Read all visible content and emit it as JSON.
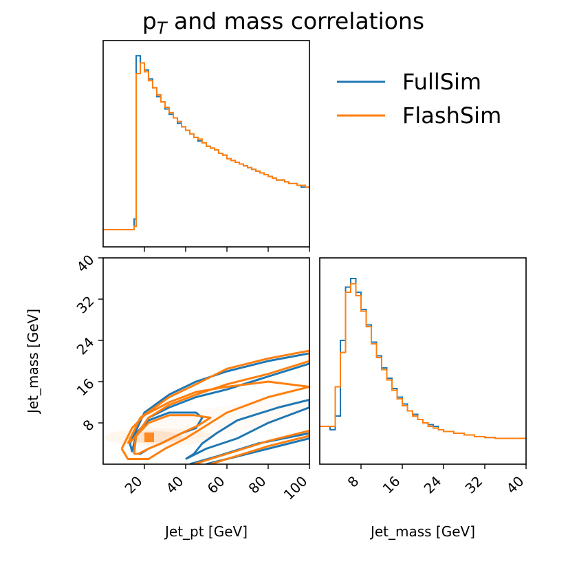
{
  "title": "p",
  "title_sub": "T",
  "title_rest": " and mass correlations",
  "colors": {
    "fullsim": "#1f77b4",
    "flashsim": "#ff7f0e"
  },
  "chart_data": [
    {
      "type": "line",
      "panel": "pt-marginal",
      "xlim": [
        0,
        100
      ],
      "xticks": [
        20,
        40,
        60,
        80,
        100
      ],
      "series": [
        {
          "name": "FullSim",
          "x": [
            0,
            14,
            15,
            16,
            18,
            20,
            22,
            24,
            26,
            28,
            30,
            32,
            34,
            36,
            38,
            40,
            42,
            44,
            46,
            48,
            50,
            52,
            54,
            56,
            58,
            60,
            62,
            64,
            66,
            68,
            70,
            72,
            74,
            76,
            78,
            80,
            82,
            84,
            86,
            88,
            90,
            92,
            94,
            96,
            98,
            100
          ],
          "values": [
            0,
            0,
            0.06,
            0.98,
            0.94,
            0.9,
            0.85,
            0.8,
            0.75,
            0.72,
            0.68,
            0.65,
            0.63,
            0.6,
            0.58,
            0.56,
            0.54,
            0.52,
            0.5,
            0.49,
            0.47,
            0.46,
            0.45,
            0.43,
            0.42,
            0.4,
            0.39,
            0.38,
            0.37,
            0.36,
            0.35,
            0.34,
            0.33,
            0.32,
            0.31,
            0.3,
            0.29,
            0.28,
            0.28,
            0.27,
            0.26,
            0.26,
            0.25,
            0.24,
            0.24,
            0.24
          ]
        },
        {
          "name": "FlashSim",
          "x": [
            0,
            14,
            15,
            16,
            18,
            20,
            22,
            24,
            26,
            28,
            30,
            32,
            34,
            36,
            38,
            40,
            42,
            44,
            46,
            48,
            50,
            52,
            54,
            56,
            58,
            60,
            62,
            64,
            66,
            68,
            70,
            72,
            74,
            76,
            78,
            80,
            82,
            84,
            86,
            88,
            90,
            92,
            94,
            96,
            98,
            100
          ],
          "values": [
            0,
            0,
            0.02,
            0.88,
            0.94,
            0.89,
            0.84,
            0.8,
            0.76,
            0.72,
            0.69,
            0.66,
            0.63,
            0.61,
            0.58,
            0.56,
            0.54,
            0.52,
            0.51,
            0.49,
            0.47,
            0.46,
            0.45,
            0.43,
            0.42,
            0.4,
            0.39,
            0.38,
            0.37,
            0.36,
            0.35,
            0.34,
            0.33,
            0.32,
            0.31,
            0.3,
            0.29,
            0.28,
            0.28,
            0.27,
            0.26,
            0.26,
            0.25,
            0.25,
            0.24,
            0.24
          ]
        }
      ]
    },
    {
      "type": "line",
      "panel": "mass-marginal",
      "xlabel": "Jet_mass [GeV]",
      "xlim": [
        0,
        40
      ],
      "xticks": [
        8,
        16,
        24,
        32,
        40
      ],
      "series": [
        {
          "name": "FullSim",
          "x": [
            0,
            2,
            3,
            4,
            5,
            6,
            7,
            8,
            9,
            10,
            11,
            12,
            13,
            14,
            15,
            16,
            17,
            18,
            19,
            20,
            21,
            22,
            23,
            24,
            26,
            28,
            30,
            32,
            34,
            36,
            40
          ],
          "values": [
            0.12,
            0.1,
            0.18,
            0.62,
            0.93,
            0.98,
            0.9,
            0.8,
            0.71,
            0.61,
            0.53,
            0.46,
            0.4,
            0.34,
            0.29,
            0.25,
            0.21,
            0.19,
            0.16,
            0.14,
            0.13,
            0.12,
            0.1,
            0.09,
            0.08,
            0.07,
            0.06,
            0.055,
            0.05,
            0.05,
            0.05
          ]
        },
        {
          "name": "FlashSim",
          "x": [
            0,
            2,
            3,
            4,
            5,
            6,
            7,
            8,
            9,
            10,
            11,
            12,
            13,
            14,
            15,
            16,
            17,
            18,
            19,
            20,
            21,
            22,
            23,
            24,
            26,
            28,
            30,
            32,
            34,
            36,
            40
          ],
          "values": [
            0.12,
            0.12,
            0.35,
            0.55,
            0.9,
            0.95,
            0.88,
            0.79,
            0.7,
            0.6,
            0.52,
            0.45,
            0.39,
            0.33,
            0.28,
            0.24,
            0.21,
            0.18,
            0.16,
            0.14,
            0.12,
            0.11,
            0.1,
            0.09,
            0.08,
            0.07,
            0.06,
            0.055,
            0.05,
            0.05,
            0.05
          ]
        }
      ]
    },
    {
      "type": "scatter",
      "panel": "pt-vs-mass-contours",
      "xlabel": "Jet_pt [GeV]",
      "ylabel": "Jet_mass [GeV]",
      "xlim": [
        0,
        100
      ],
      "ylim": [
        0,
        40
      ],
      "xticks": [
        20,
        40,
        60,
        80,
        100
      ],
      "yticks": [
        8,
        16,
        24,
        32,
        40
      ],
      "series": [
        {
          "name": "FullSim",
          "contours": [
            [
              [
                15,
                2
              ],
              [
                16,
                6
              ],
              [
                22,
                8.5
              ],
              [
                32,
                10
              ],
              [
                45,
                10
              ],
              [
                48,
                9
              ],
              [
                45,
                7
              ],
              [
                38,
                6
              ],
              [
                28,
                4
              ],
              [
                22,
                3
              ],
              [
                18,
                2
              ],
              [
                15,
                2
              ]
            ],
            [
              [
                13,
                4
              ],
              [
                20,
                10
              ],
              [
                32,
                13.5
              ],
              [
                45,
                16
              ],
              [
                60,
                18
              ],
              [
                80,
                20
              ],
              [
                100,
                21.5
              ],
              [
                100,
                19.5
              ],
              [
                80,
                17
              ],
              [
                60,
                14.5
              ],
              [
                45,
                13
              ],
              [
                32,
                11
              ],
              [
                22,
                9
              ],
              [
                16,
                5.5
              ],
              [
                14,
                2.5
              ],
              [
                13,
                4
              ]
            ],
            [
              [
                40,
                1
              ],
              [
                50,
                3
              ],
              [
                65,
                5
              ],
              [
                80,
                8
              ],
              [
                100,
                11
              ],
              [
                100,
                12.5
              ],
              [
                85,
                11
              ],
              [
                65,
                8.5
              ],
              [
                55,
                6
              ],
              [
                48,
                4
              ],
              [
                44,
                2
              ],
              [
                40,
                1
              ]
            ],
            [
              [
                42,
                0
              ],
              [
                55,
                1.5
              ],
              [
                75,
                4
              ],
              [
                100,
                6
              ],
              [
                100,
                5
              ],
              [
                80,
                3
              ],
              [
                60,
                1
              ],
              [
                50,
                0
              ]
            ]
          ]
        },
        {
          "name": "FlashSim",
          "contours": [
            [
              [
                15,
                2
              ],
              [
                16,
                5.5
              ],
              [
                22,
                8
              ],
              [
                32,
                9.5
              ],
              [
                44,
                9.5
              ],
              [
                52,
                9
              ],
              [
                46,
                7.5
              ],
              [
                38,
                6
              ],
              [
                28,
                4
              ],
              [
                22,
                3
              ],
              [
                17,
                2
              ],
              [
                15,
                2
              ]
            ],
            [
              [
                12,
                4
              ],
              [
                18,
                9
              ],
              [
                32,
                13
              ],
              [
                45,
                15.5
              ],
              [
                60,
                18.5
              ],
              [
                80,
                20.5
              ],
              [
                100,
                22
              ],
              [
                100,
                20
              ],
              [
                80,
                17.5
              ],
              [
                60,
                15.5
              ],
              [
                45,
                13.5
              ],
              [
                32,
                11.5
              ],
              [
                22,
                9
              ],
              [
                15,
                5
              ],
              [
                12,
                4
              ]
            ],
            [
              [
                9,
                3
              ],
              [
                14,
                7
              ],
              [
                20,
                9.5
              ],
              [
                32,
                12
              ],
              [
                45,
                14
              ],
              [
                60,
                15
              ],
              [
                80,
                16
              ],
              [
                100,
                15
              ],
              [
                80,
                13
              ],
              [
                60,
                10
              ],
              [
                48,
                7
              ],
              [
                40,
                5
              ],
              [
                30,
                3
              ],
              [
                22,
                1
              ],
              [
                12,
                1
              ],
              [
                9,
                3
              ]
            ],
            [
              [
                44,
                0
              ],
              [
                60,
                2
              ],
              [
                80,
                4.5
              ],
              [
                100,
                6.5
              ],
              [
                100,
                5.5
              ],
              [
                80,
                3.5
              ],
              [
                60,
                1
              ],
              [
                52,
                0
              ]
            ]
          ]
        }
      ]
    }
  ],
  "legend": {
    "entries": [
      "FullSim",
      "FlashSim"
    ],
    "placement": "top-right"
  }
}
